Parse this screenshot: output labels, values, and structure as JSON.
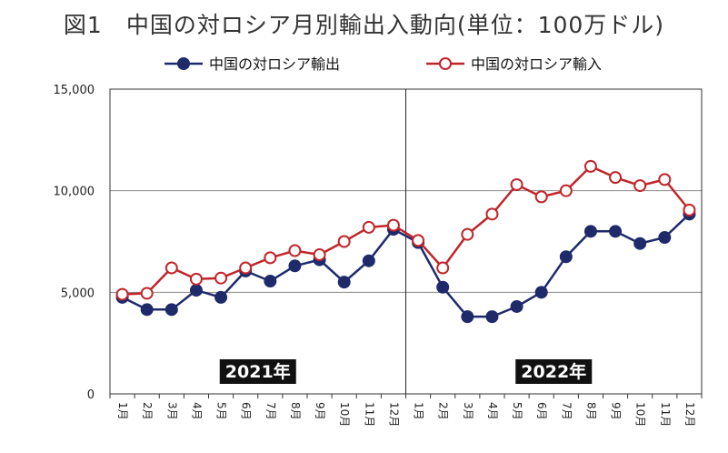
{
  "chart_data": {
    "type": "line",
    "title": "図1　中国の対ロシア月別輸出入動向(単位：100万ドル)",
    "categories": [
      "1月",
      "2月",
      "3月",
      "4月",
      "5月",
      "6月",
      "7月",
      "8月",
      "9月",
      "10月",
      "11月",
      "12月",
      "1月",
      "2月",
      "3月",
      "4月",
      "5月",
      "6月",
      "7月",
      "8月",
      "9月",
      "10月",
      "11月",
      "12月"
    ],
    "year_labels": [
      "2021年",
      "2022年"
    ],
    "ylim": [
      0,
      15000
    ],
    "yticks": [
      0,
      5000,
      10000,
      15000
    ],
    "ytick_labels": [
      "0",
      "5,000",
      "10,000",
      "15,000"
    ],
    "grid": true,
    "legend_position": "top",
    "series": [
      {
        "name": "中国の対ロシア輸出",
        "color": "#1f2a6b",
        "marker": "filled-circle",
        "values": [
          4750,
          4150,
          4150,
          5100,
          4750,
          6050,
          5550,
          6300,
          6600,
          5500,
          6550,
          8100,
          7450,
          5250,
          3800,
          3800,
          4300,
          5000,
          6750,
          8000,
          8000,
          7400,
          7700,
          8850
        ]
      },
      {
        "name": "中国の対ロシア輸入",
        "color": "#c0252a",
        "marker": "open-circle",
        "values": [
          4900,
          4950,
          6200,
          5650,
          5700,
          6200,
          6700,
          7050,
          6850,
          7500,
          8200,
          8300,
          7550,
          6200,
          7850,
          8850,
          10300,
          9700,
          10000,
          11200,
          10650,
          10250,
          10550,
          9050
        ]
      }
    ]
  }
}
